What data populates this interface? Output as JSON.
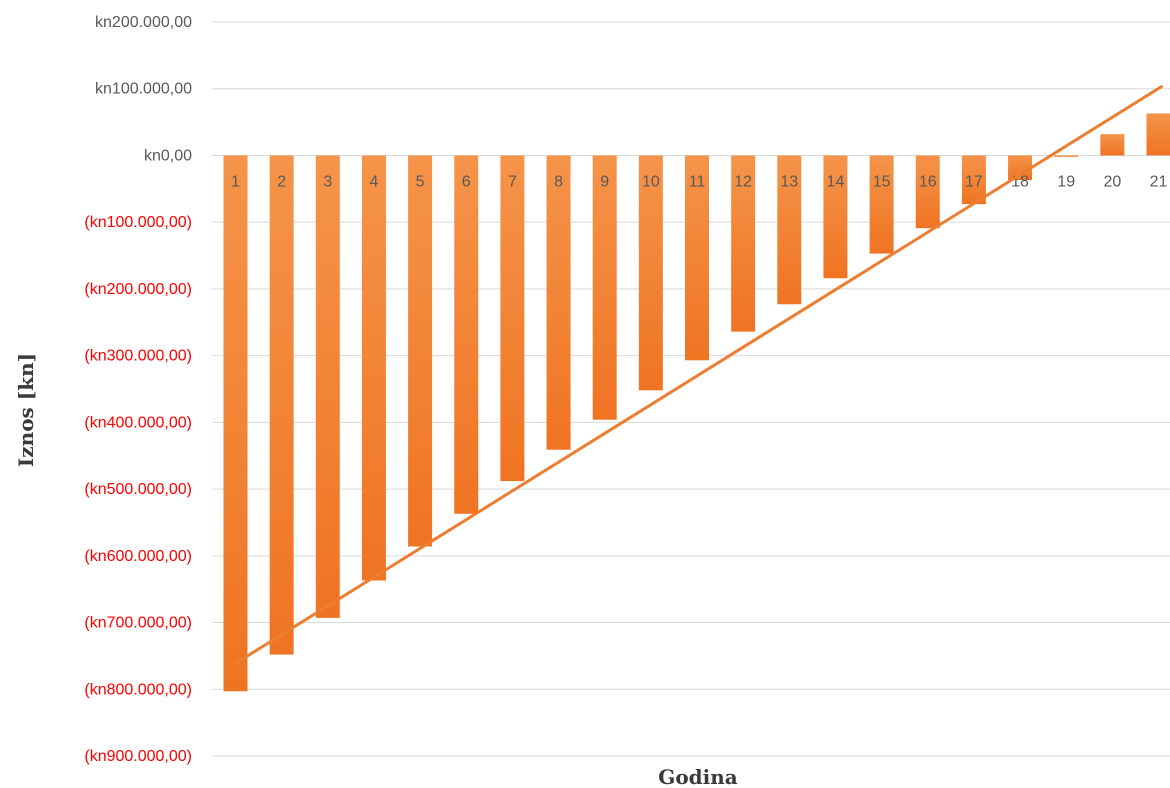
{
  "colors": {
    "bar": "#ef7422",
    "bar_light": "#f5944a",
    "trendline": "#ed7d31",
    "grid": "#d9d9d9",
    "positive_label": "#595959",
    "negative_label": "#ff0000"
  },
  "chart_data": {
    "type": "bar",
    "title": "",
    "xlabel": "Godina",
    "ylabel": "Iznos [kn]",
    "ylim": [
      -900000,
      200000
    ],
    "y_ticks": [
      {
        "value": 200000,
        "label": "kn200.000,00"
      },
      {
        "value": 100000,
        "label": "kn100.000,00"
      },
      {
        "value": 0,
        "label": "kn0,00"
      },
      {
        "value": -100000,
        "label": "(kn100.000,00)"
      },
      {
        "value": -200000,
        "label": "(kn200.000,00)"
      },
      {
        "value": -300000,
        "label": "(kn300.000,00)"
      },
      {
        "value": -400000,
        "label": "(kn400.000,00)"
      },
      {
        "value": -500000,
        "label": "(kn500.000,00)"
      },
      {
        "value": -600000,
        "label": "(kn600.000,00)"
      },
      {
        "value": -700000,
        "label": "(kn700.000,00)"
      },
      {
        "value": -800000,
        "label": "(kn800.000,00)"
      },
      {
        "value": -900000,
        "label": "(kn900.000,00)"
      }
    ],
    "grid": true,
    "legend": "none",
    "categories": [
      "1",
      "2",
      "3",
      "4",
      "5",
      "6",
      "7",
      "8",
      "9",
      "10",
      "11",
      "12",
      "13",
      "14",
      "15",
      "16",
      "17",
      "18",
      "19",
      "20",
      "21"
    ],
    "values": [
      -803000,
      -748000,
      -693000,
      -637000,
      -586000,
      -537000,
      -488000,
      -441000,
      -396000,
      -352000,
      -307000,
      -264000,
      -223000,
      -184000,
      -147000,
      -109000,
      -73000,
      -37000,
      -2000,
      32000,
      63000
    ],
    "trendline": {
      "type": "linear"
    }
  }
}
